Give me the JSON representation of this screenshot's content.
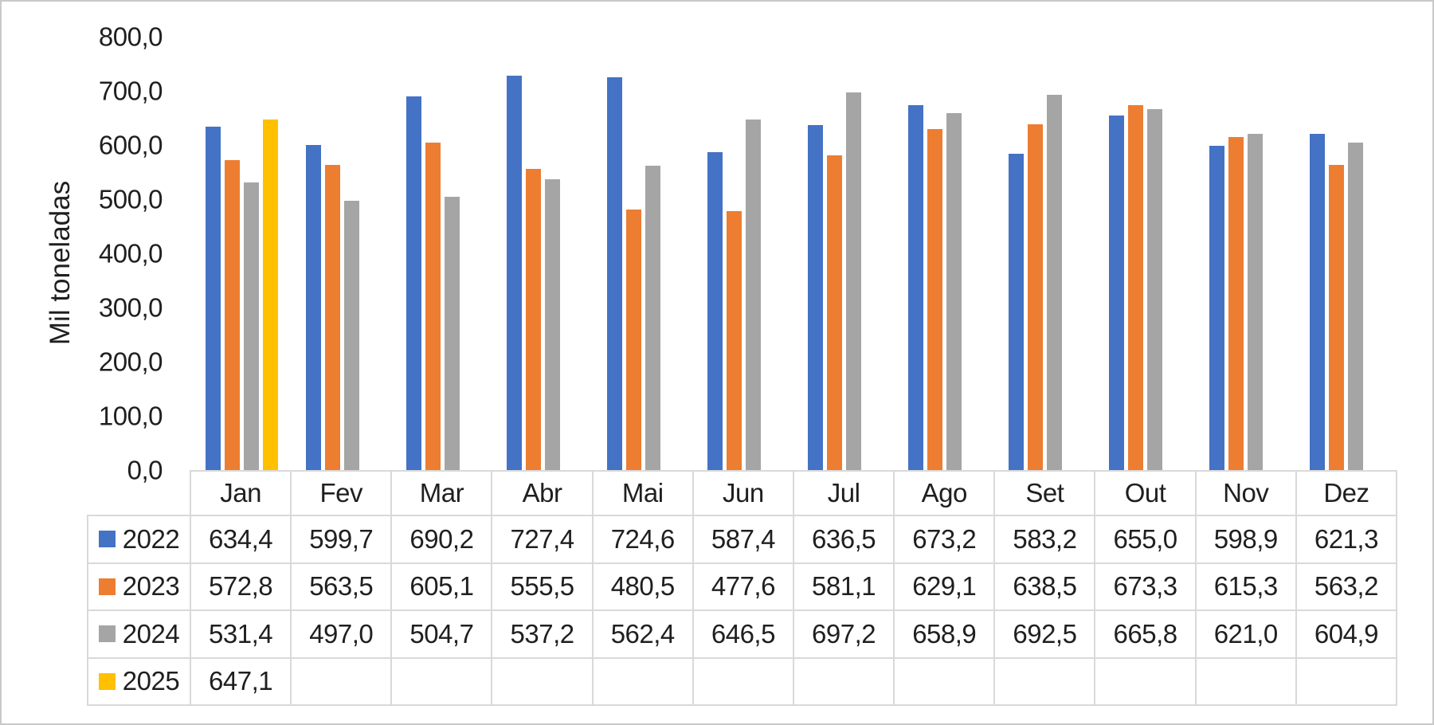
{
  "chart_data": {
    "type": "bar",
    "title": "",
    "xlabel": "",
    "ylabel": "Mil toneladas",
    "ylim": [
      0,
      800
    ],
    "ytick_step": 100,
    "ytick_labels": [
      "0,0",
      "100,0",
      "200,0",
      "300,0",
      "400,0",
      "500,0",
      "600,0",
      "700,0",
      "800,0"
    ],
    "grid": false,
    "legend_position": "data-table-left-keys",
    "categories": [
      "Jan",
      "Fev",
      "Mar",
      "Abr",
      "Mai",
      "Jun",
      "Jul",
      "Ago",
      "Set",
      "Out",
      "Nov",
      "Dez"
    ],
    "series": [
      {
        "name": "2022",
        "color": "#4472C4",
        "values": [
          634.4,
          599.7,
          690.2,
          727.4,
          724.6,
          587.4,
          636.5,
          673.2,
          583.2,
          655.0,
          598.9,
          621.3
        ]
      },
      {
        "name": "2023",
        "color": "#ED7D31",
        "values": [
          572.8,
          563.5,
          605.1,
          555.5,
          480.5,
          477.6,
          581.1,
          629.1,
          638.5,
          673.3,
          615.3,
          563.2
        ]
      },
      {
        "name": "2024",
        "color": "#A5A5A5",
        "values": [
          531.4,
          497.0,
          504.7,
          537.2,
          562.4,
          646.5,
          697.2,
          658.9,
          692.5,
          665.8,
          621.0,
          604.9
        ]
      },
      {
        "name": "2025",
        "color": "#FFC000",
        "values": [
          647.1,
          null,
          null,
          null,
          null,
          null,
          null,
          null,
          null,
          null,
          null,
          null
        ]
      }
    ],
    "value_format": "one-decimal-comma"
  }
}
